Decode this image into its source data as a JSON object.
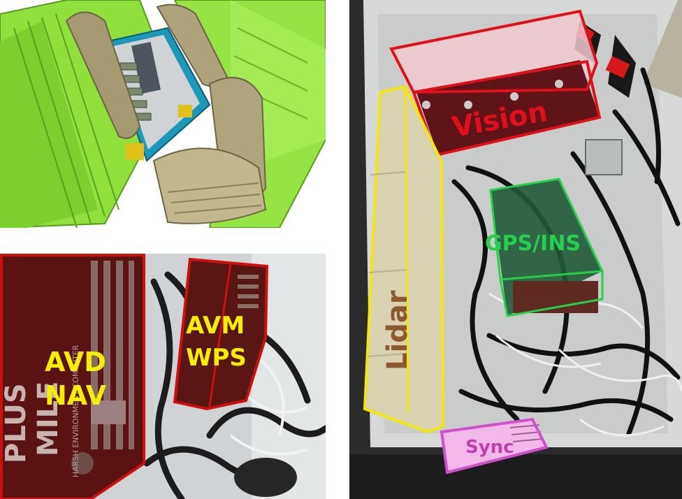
{
  "labels": {
    "avd_nav": [
      "AVD",
      "NAV"
    ],
    "avm_wps": [
      "AVM",
      "WPS"
    ],
    "vision": "Vision",
    "gps_ins": "GPS/INS",
    "lidar": "Lidar",
    "sync": "Sync"
  },
  "computer_marking": {
    "brand": "PLUS",
    "model": "MILE",
    "caption": "HARSH ENVIRONMENT COMPUTER"
  },
  "colors": {
    "vision": "#e0101a",
    "gps_ins": "#26d04a",
    "lidar": "#f2e60e",
    "sync": "#d050c8",
    "avd_avm": "#cc1010",
    "label_yellow": "#f6f000",
    "cad_green": "#8fe03a"
  }
}
